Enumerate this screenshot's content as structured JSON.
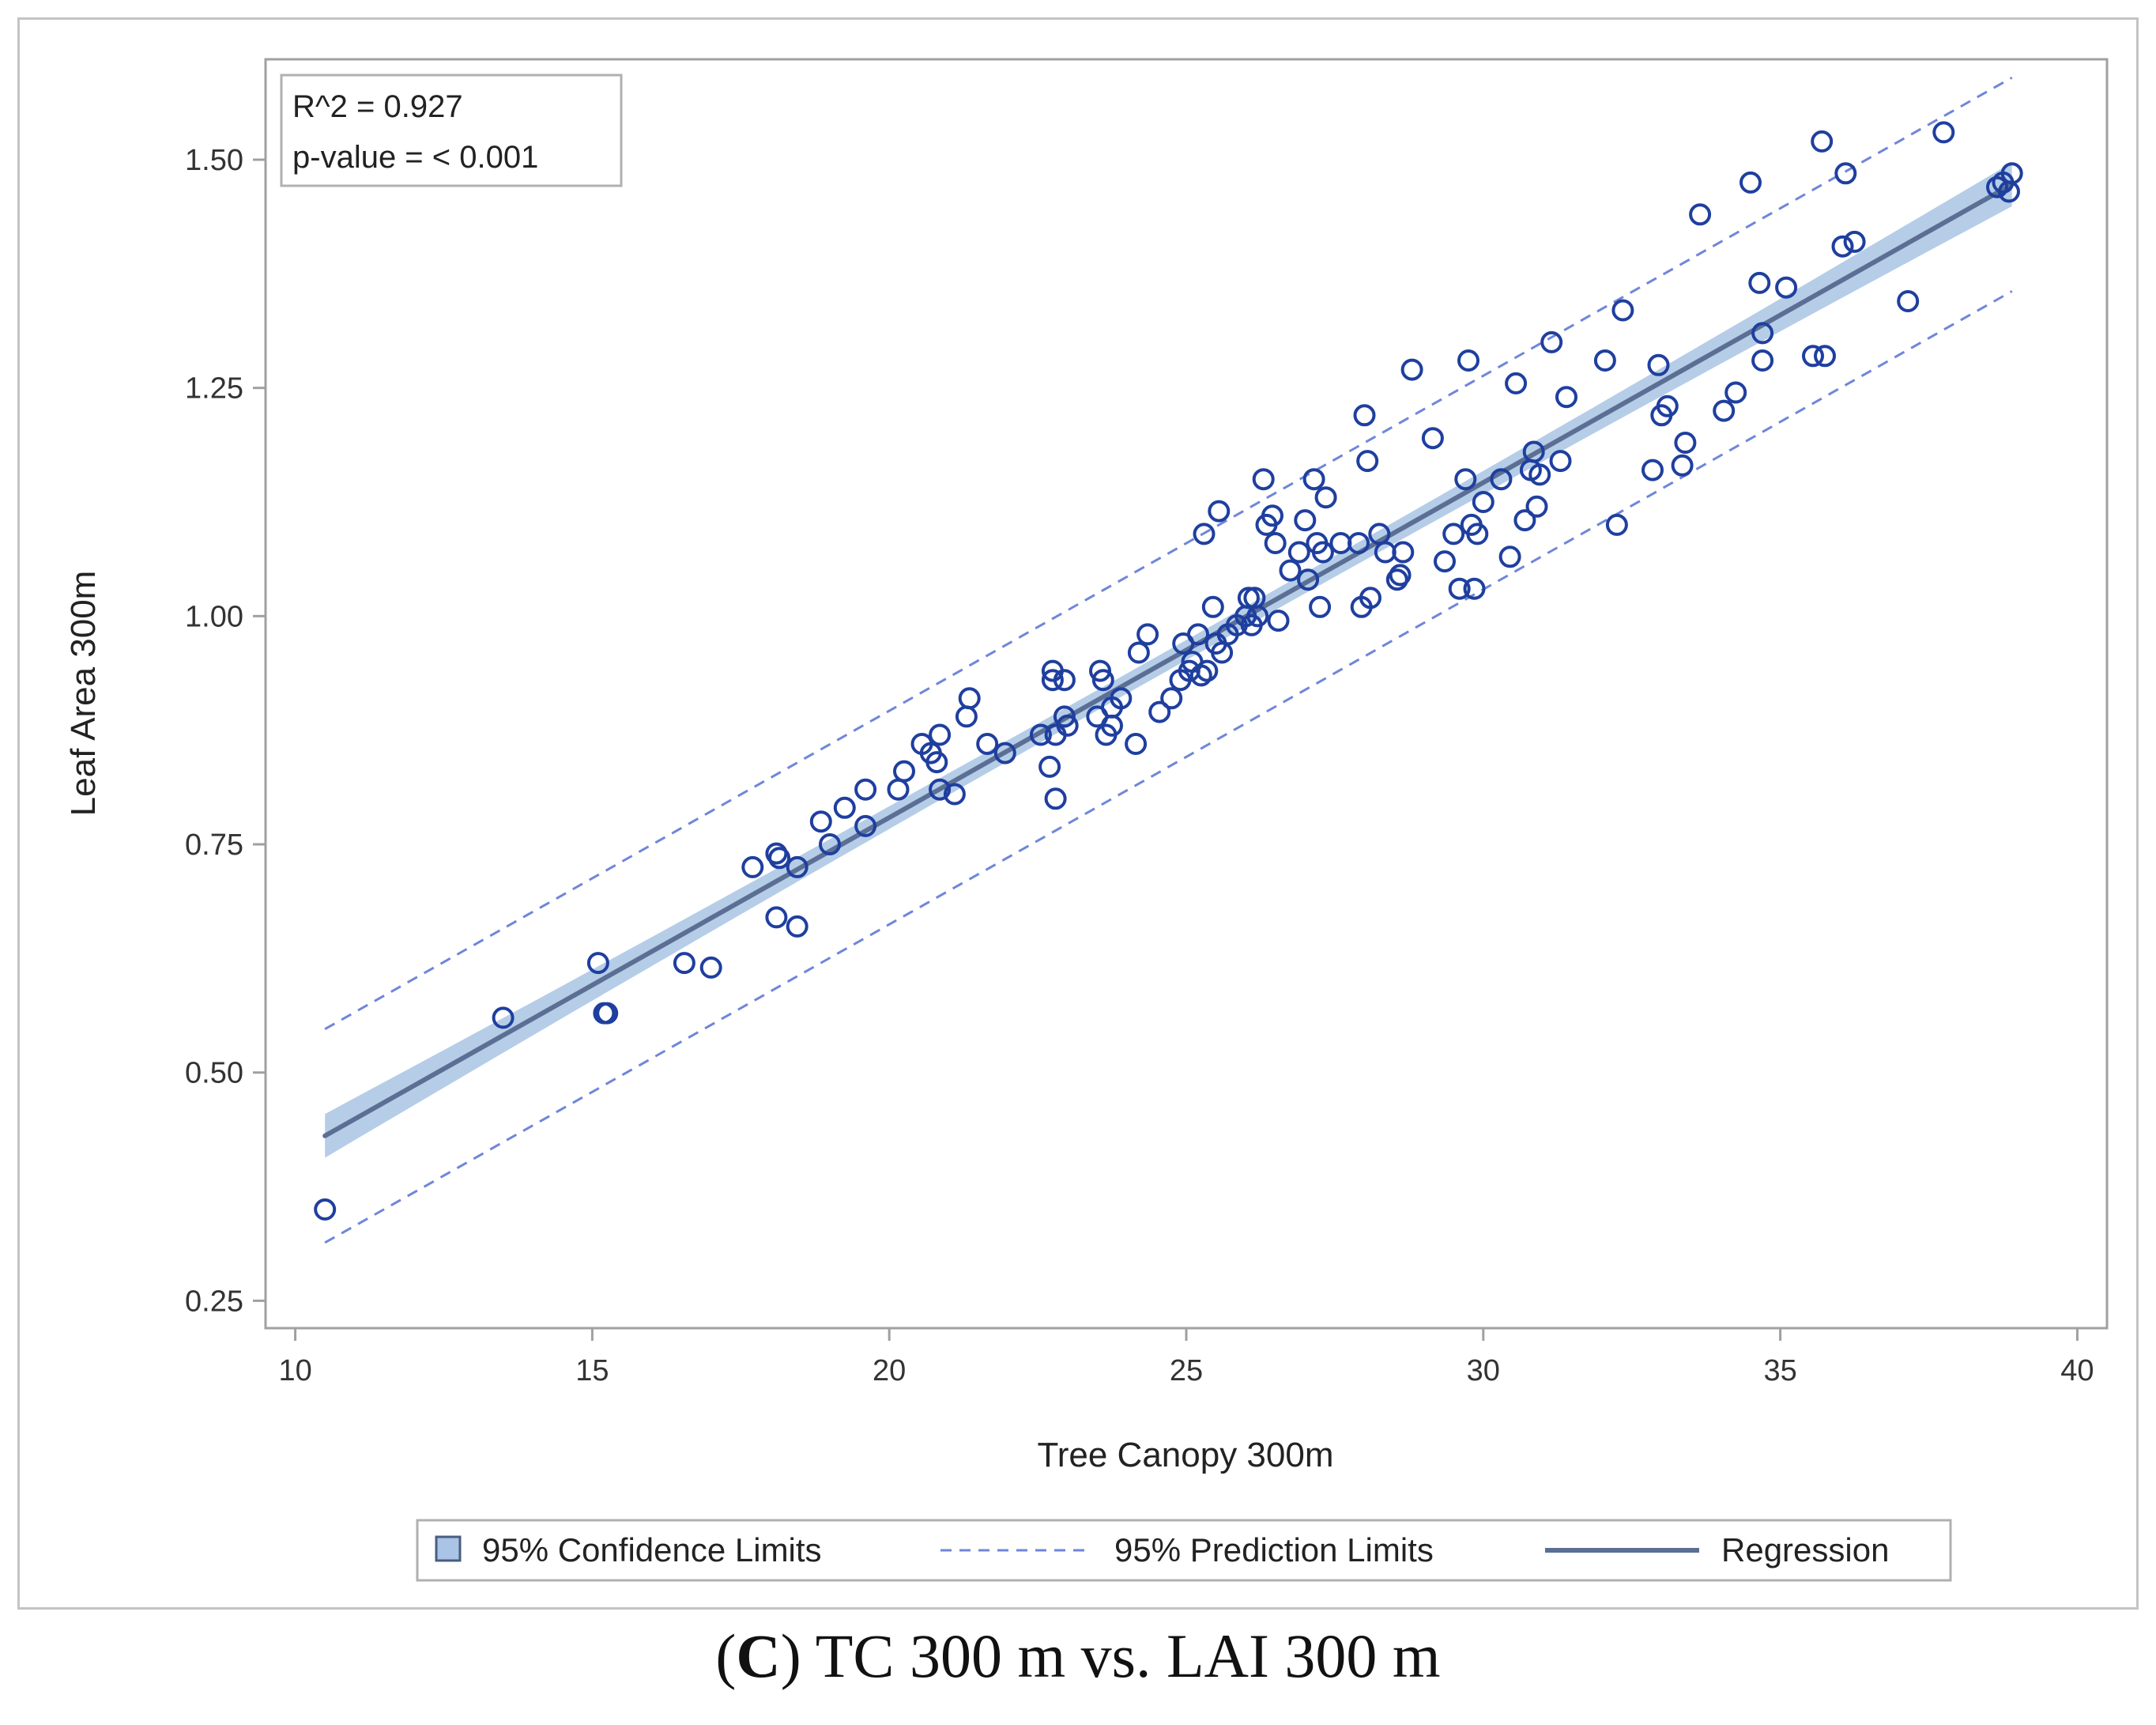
{
  "caption": {
    "prefix": "(",
    "letter": "C",
    "text": ") TC 300 m vs. LAI 300 m"
  },
  "stats": {
    "r2": "R^2 = 0.927",
    "pvalue": "p-value = < 0.001"
  },
  "colors": {
    "point": "#1f3f9f",
    "band": "#a9c4e4",
    "line": "#5b6f94",
    "pred": "#6f86d9",
    "axis": "#a0a0a0"
  },
  "legend": {
    "confidence": "95% Confidence Limits",
    "prediction": "95% Prediction Limits",
    "regression": "Regression"
  },
  "chart_data": {
    "type": "scatter",
    "xlabel": "Tree Canopy 300m",
    "ylabel": "Leaf Area 300m",
    "xlim": [
      9.5,
      40.5
    ],
    "ylim": [
      0.22,
      1.61
    ],
    "xticks": [
      10,
      15,
      20,
      25,
      30,
      35,
      40
    ],
    "yticks": [
      0.25,
      0.5,
      0.75,
      1.0,
      1.25,
      1.5
    ],
    "ytick_labels": [
      "0.25",
      "0.50",
      "0.75",
      "1.00",
      "1.25",
      "1.50"
    ],
    "regression": {
      "intercept": 0.0453,
      "slope": 0.0367,
      "x_range": [
        10.5,
        38.9
      ]
    },
    "confidence_halfwidth_ends": 0.024,
    "confidence_halfwidth_center": 0.011,
    "prediction_halfwidth": 0.117,
    "points": [
      [
        10.5,
        0.35
      ],
      [
        13.5,
        0.56
      ],
      [
        15.1,
        0.62
      ],
      [
        15.2,
        0.565
      ],
      [
        15.25,
        0.565
      ],
      [
        16.55,
        0.62
      ],
      [
        17.0,
        0.615
      ],
      [
        17.7,
        0.725
      ],
      [
        18.1,
        0.74
      ],
      [
        18.15,
        0.735
      ],
      [
        18.1,
        0.67
      ],
      [
        18.45,
        0.66
      ],
      [
        18.45,
        0.725
      ],
      [
        18.85,
        0.775
      ],
      [
        19.0,
        0.75
      ],
      [
        19.25,
        0.79
      ],
      [
        19.6,
        0.81
      ],
      [
        19.6,
        0.77
      ],
      [
        20.15,
        0.81
      ],
      [
        20.25,
        0.83
      ],
      [
        20.55,
        0.86
      ],
      [
        20.7,
        0.85
      ],
      [
        20.8,
        0.84
      ],
      [
        20.85,
        0.87
      ],
      [
        20.85,
        0.81
      ],
      [
        21.1,
        0.805
      ],
      [
        21.3,
        0.89
      ],
      [
        21.35,
        0.91
      ],
      [
        21.65,
        0.86
      ],
      [
        21.95,
        0.85
      ],
      [
        22.55,
        0.87
      ],
      [
        22.7,
        0.835
      ],
      [
        22.75,
        0.94
      ],
      [
        22.75,
        0.93
      ],
      [
        22.8,
        0.87
      ],
      [
        22.8,
        0.8
      ],
      [
        22.95,
        0.89
      ],
      [
        22.95,
        0.93
      ],
      [
        23.0,
        0.88
      ],
      [
        23.55,
        0.94
      ],
      [
        23.6,
        0.93
      ],
      [
        23.5,
        0.89
      ],
      [
        23.65,
        0.87
      ],
      [
        23.75,
        0.88
      ],
      [
        23.75,
        0.9
      ],
      [
        23.9,
        0.91
      ],
      [
        24.15,
        0.86
      ],
      [
        24.2,
        0.96
      ],
      [
        24.35,
        0.98
      ],
      [
        24.55,
        0.895
      ],
      [
        24.75,
        0.91
      ],
      [
        24.9,
        0.93
      ],
      [
        24.95,
        0.97
      ],
      [
        25.05,
        0.94
      ],
      [
        25.1,
        0.95
      ],
      [
        25.2,
        0.98
      ],
      [
        25.25,
        0.935
      ],
      [
        25.3,
        1.09
      ],
      [
        25.35,
        0.94
      ],
      [
        25.45,
        1.01
      ],
      [
        25.5,
        0.97
      ],
      [
        25.55,
        1.115
      ],
      [
        25.6,
        0.96
      ],
      [
        25.7,
        0.98
      ],
      [
        25.85,
        0.99
      ],
      [
        26.0,
        1.0
      ],
      [
        26.05,
        1.02
      ],
      [
        26.1,
        0.99
      ],
      [
        26.15,
        1.02
      ],
      [
        26.2,
        1.0
      ],
      [
        26.3,
        1.15
      ],
      [
        26.35,
        1.1
      ],
      [
        26.45,
        1.11
      ],
      [
        26.5,
        1.08
      ],
      [
        26.55,
        0.995
      ],
      [
        26.75,
        1.05
      ],
      [
        26.9,
        1.07
      ],
      [
        27.0,
        1.105
      ],
      [
        27.05,
        1.04
      ],
      [
        27.15,
        1.15
      ],
      [
        27.2,
        1.08
      ],
      [
        27.25,
        1.01
      ],
      [
        27.35,
        1.13
      ],
      [
        27.3,
        1.07
      ],
      [
        27.6,
        1.08
      ],
      [
        27.9,
        1.08
      ],
      [
        27.95,
        1.01
      ],
      [
        28.0,
        1.22
      ],
      [
        28.05,
        1.17
      ],
      [
        28.1,
        1.02
      ],
      [
        28.25,
        1.09
      ],
      [
        28.35,
        1.07
      ],
      [
        28.55,
        1.04
      ],
      [
        28.6,
        1.045
      ],
      [
        28.65,
        1.07
      ],
      [
        28.8,
        1.27
      ],
      [
        29.15,
        1.195
      ],
      [
        29.35,
        1.06
      ],
      [
        29.5,
        1.09
      ],
      [
        29.6,
        1.03
      ],
      [
        29.7,
        1.15
      ],
      [
        29.75,
        1.28
      ],
      [
        29.8,
        1.1
      ],
      [
        29.85,
        1.03
      ],
      [
        29.9,
        1.09
      ],
      [
        30.0,
        1.125
      ],
      [
        30.3,
        1.15
      ],
      [
        30.45,
        1.065
      ],
      [
        30.55,
        1.255
      ],
      [
        30.7,
        1.105
      ],
      [
        30.8,
        1.16
      ],
      [
        30.85,
        1.18
      ],
      [
        30.9,
        1.12
      ],
      [
        30.95,
        1.155
      ],
      [
        31.15,
        1.3
      ],
      [
        31.3,
        1.17
      ],
      [
        31.4,
        1.24
      ],
      [
        32.05,
        1.28
      ],
      [
        32.25,
        1.1
      ],
      [
        32.35,
        1.335
      ],
      [
        32.85,
        1.16
      ],
      [
        32.95,
        1.275
      ],
      [
        33.0,
        1.22
      ],
      [
        33.1,
        1.23
      ],
      [
        33.35,
        1.165
      ],
      [
        33.4,
        1.19
      ],
      [
        33.65,
        1.44
      ],
      [
        34.05,
        1.225
      ],
      [
        34.25,
        1.245
      ],
      [
        34.5,
        1.475
      ],
      [
        34.65,
        1.365
      ],
      [
        34.7,
        1.31
      ],
      [
        34.7,
        1.28
      ],
      [
        35.1,
        1.36
      ],
      [
        35.55,
        1.285
      ],
      [
        35.7,
        1.52
      ],
      [
        35.75,
        1.285
      ],
      [
        36.05,
        1.405
      ],
      [
        36.1,
        1.485
      ],
      [
        36.25,
        1.41
      ],
      [
        37.15,
        1.345
      ],
      [
        37.75,
        1.53
      ],
      [
        38.65,
        1.47
      ],
      [
        38.75,
        1.475
      ],
      [
        38.85,
        1.465
      ],
      [
        38.9,
        1.485
      ]
    ]
  }
}
